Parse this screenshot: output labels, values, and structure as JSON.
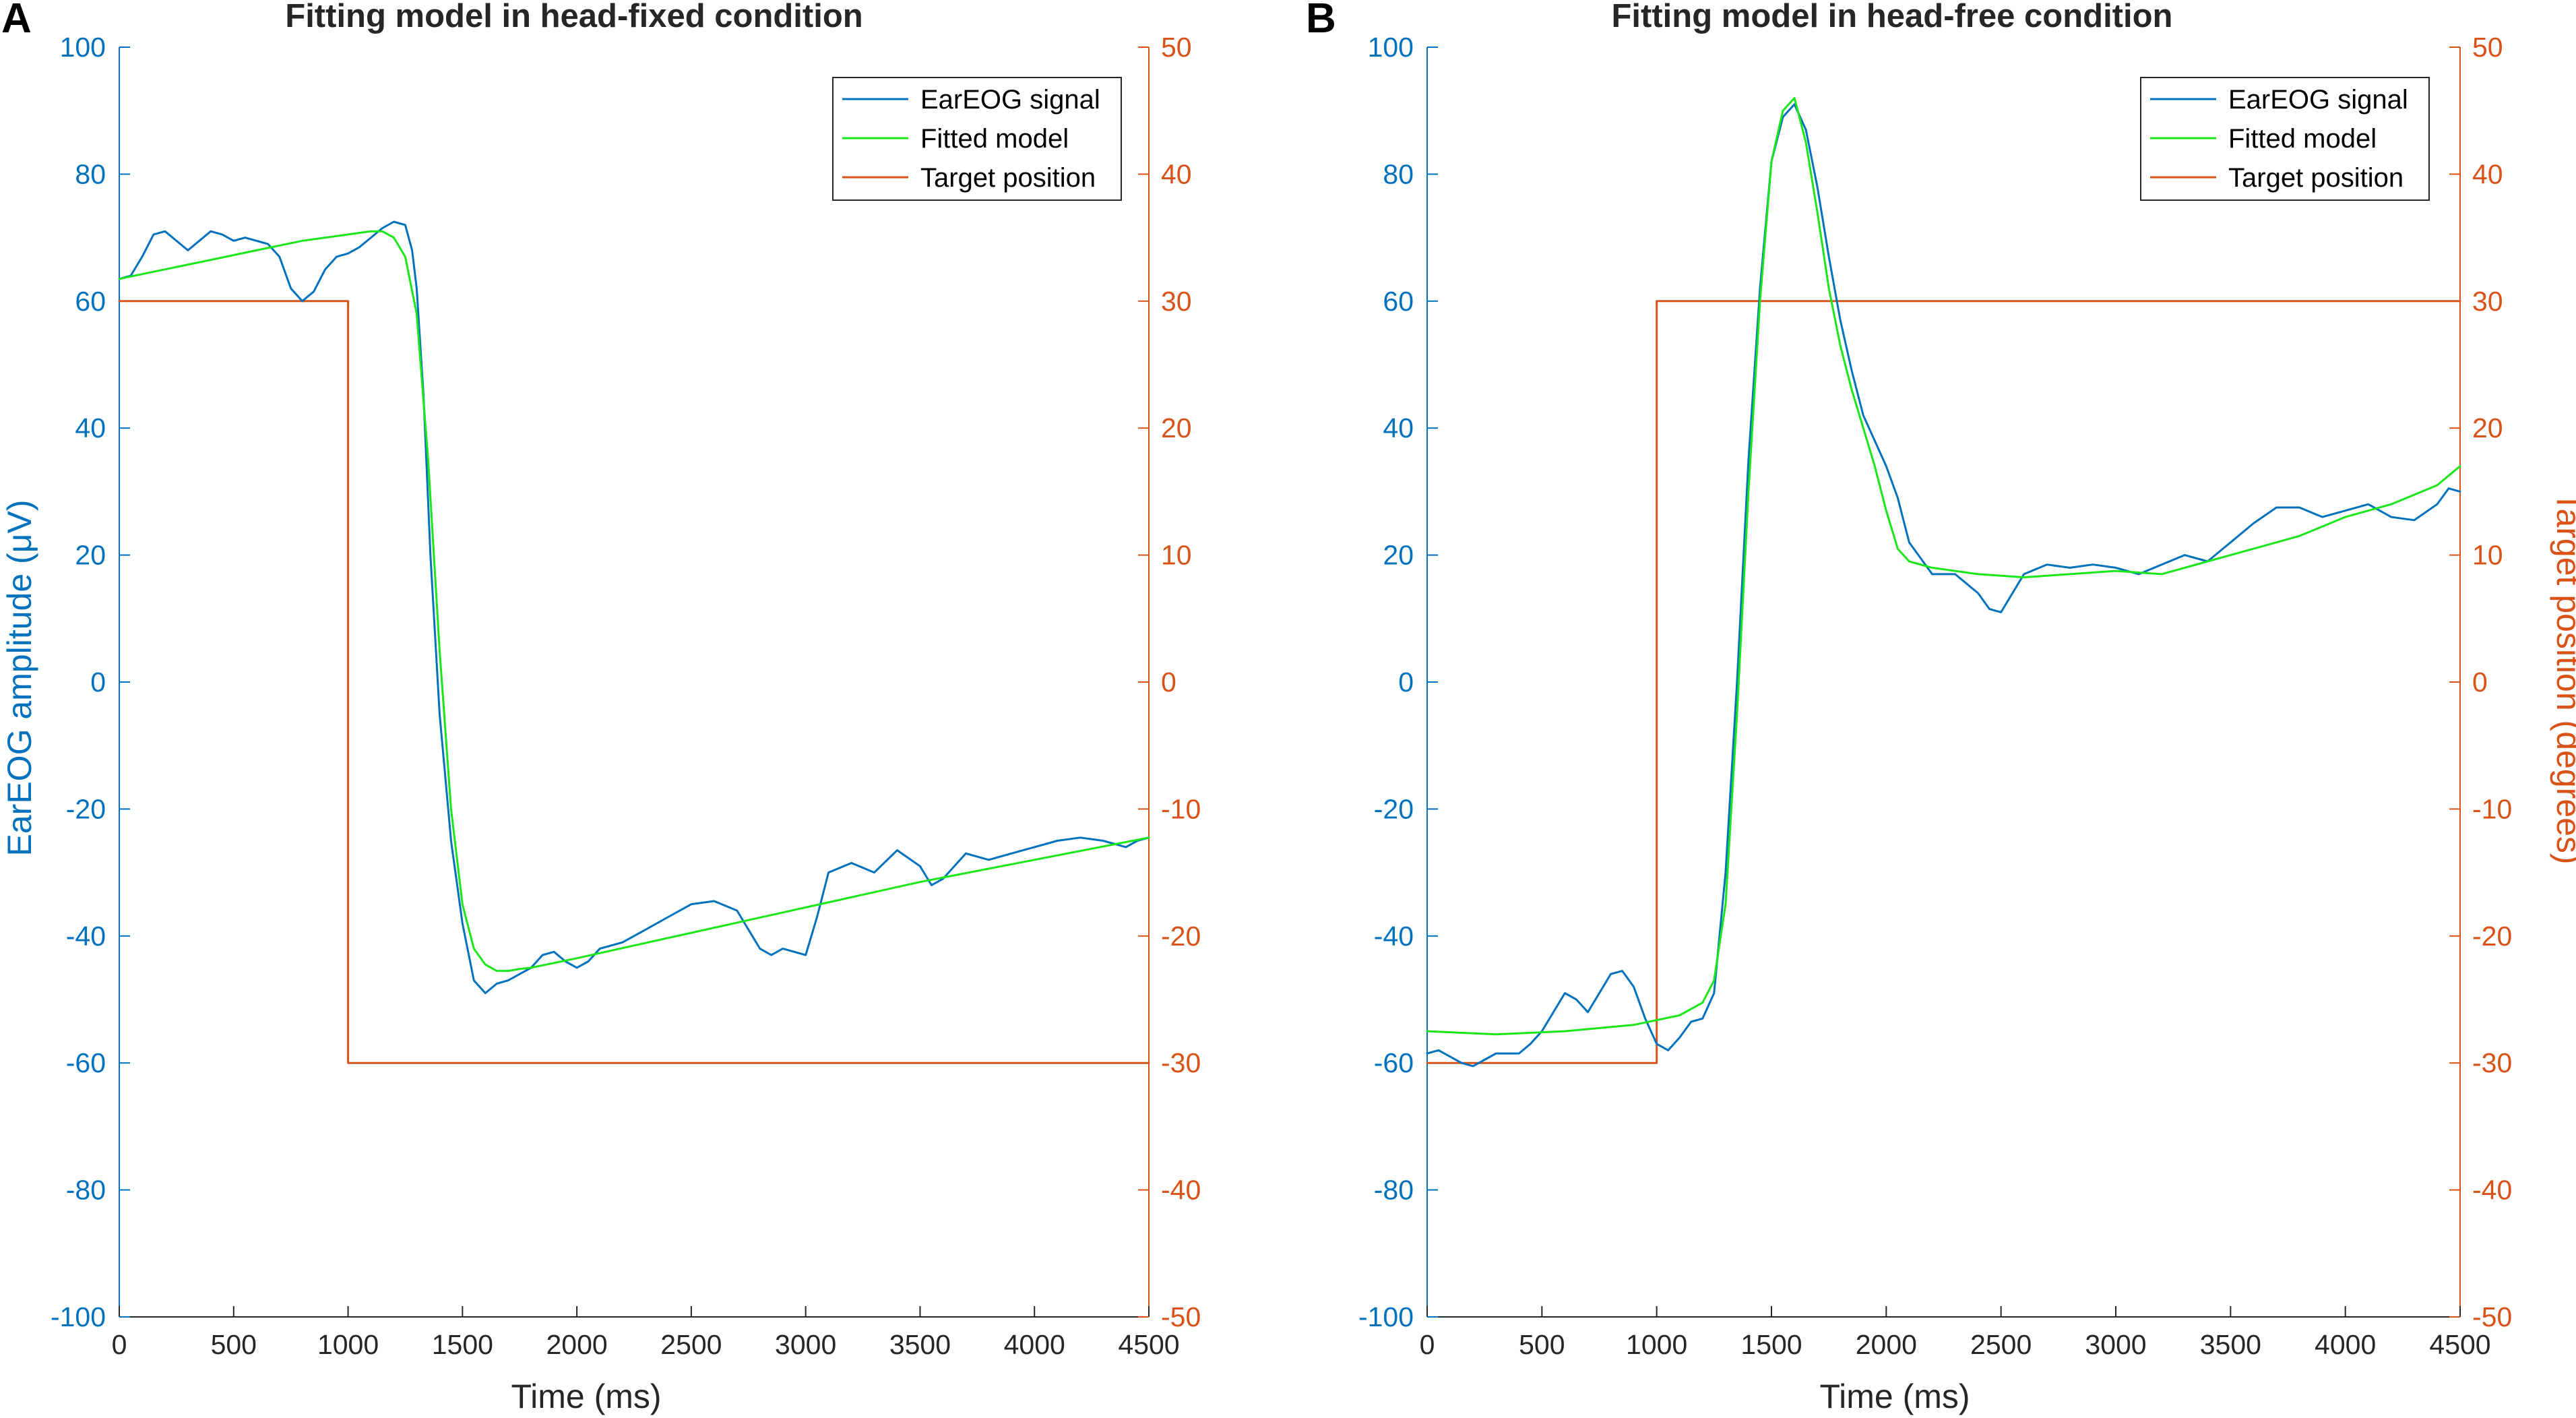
{
  "colors": {
    "left_axis": "#0072BD",
    "right_axis": "#D95319",
    "eareog": "#0072BD",
    "fitted": "#1AE61A",
    "target": "#D95319",
    "x_axis": "#262626"
  },
  "chart_data": [
    {
      "type": "line",
      "panel_label": "A",
      "title": "Fitting model in head-fixed condition",
      "xlabel": "Time (ms)",
      "ylabel_left": "EarEOG amplitude (μV)",
      "ylabel_right": "",
      "xlim": [
        0,
        4500
      ],
      "ylim_left": [
        -100,
        100
      ],
      "ylim_right": [
        -50,
        50
      ],
      "x_ticks": [
        "0",
        "500",
        "1000",
        "1500",
        "2000",
        "2500",
        "3000",
        "3500",
        "4000",
        "4500"
      ],
      "y_left_ticks": [
        "100",
        "80",
        "60",
        "40",
        "20",
        "0",
        "-20",
        "-40",
        "-60",
        "-80",
        "-100"
      ],
      "y_right_ticks": [
        "50",
        "40",
        "30",
        "20",
        "10",
        "0",
        "-10",
        "-20",
        "-30",
        "-40",
        "-50"
      ],
      "legend": [
        "EarEOG signal",
        "Fitted model",
        "Target position"
      ],
      "legend_position": "top-right",
      "series": [
        {
          "name": "EarEOG signal",
          "axis": "left",
          "x": [
            0,
            50,
            100,
            150,
            200,
            250,
            300,
            350,
            400,
            450,
            500,
            550,
            600,
            650,
            700,
            750,
            800,
            850,
            900,
            950,
            1000,
            1050,
            1100,
            1150,
            1200,
            1250,
            1280,
            1300,
            1330,
            1360,
            1400,
            1450,
            1500,
            1550,
            1600,
            1650,
            1700,
            1750,
            1800,
            1850,
            1900,
            1950,
            2000,
            2050,
            2100,
            2150,
            2200,
            2300,
            2400,
            2500,
            2600,
            2700,
            2800,
            2850,
            2900,
            3000,
            3050,
            3100,
            3200,
            3300,
            3400,
            3500,
            3550,
            3600,
            3700,
            3800,
            3900,
            4000,
            4100,
            4200,
            4300,
            4400,
            4450,
            4500
          ],
          "y": [
            63.5,
            64,
            67,
            70.5,
            71,
            69.5,
            68,
            69.5,
            71,
            70.5,
            69.5,
            70,
            69.5,
            69,
            67,
            62,
            60,
            61.5,
            65,
            67,
            67.5,
            68.5,
            70,
            71.5,
            72.5,
            72,
            68,
            62,
            45,
            20,
            -5,
            -25,
            -38,
            -47,
            -49,
            -47.5,
            -47,
            -46,
            -45,
            -43,
            -42.5,
            -44,
            -45,
            -44,
            -42,
            -41.5,
            -41,
            -39,
            -37,
            -35,
            -34.5,
            -36,
            -42,
            -43,
            -42,
            -43,
            -37,
            -30,
            -28.5,
            -30,
            -26.5,
            -29,
            -32,
            -31,
            -27,
            -28,
            -27,
            -26,
            -25,
            -24.5,
            -25,
            -26,
            -25,
            -24.5
          ]
        },
        {
          "name": "Fitted model",
          "axis": "left",
          "x": [
            0,
            200,
            400,
            600,
            800,
            1000,
            1100,
            1150,
            1200,
            1250,
            1300,
            1350,
            1400,
            1450,
            1500,
            1550,
            1600,
            1650,
            1700,
            1750,
            1800,
            2000,
            2500,
            3000,
            3500,
            4000,
            4500
          ],
          "y": [
            63.5,
            65,
            66.5,
            68,
            69.5,
            70.5,
            71,
            71,
            70,
            67,
            58,
            35,
            5,
            -20,
            -35,
            -42,
            -44.5,
            -45.5,
            -45.5,
            -45.2,
            -45,
            -43.5,
            -39.5,
            -35.5,
            -31.5,
            -28,
            -24.5
          ]
        },
        {
          "name": "Target position",
          "axis": "right",
          "step": true,
          "x": [
            0,
            1000,
            1000,
            4500
          ],
          "y": [
            30,
            30,
            -30,
            -30
          ]
        }
      ]
    },
    {
      "type": "line",
      "panel_label": "B",
      "title": "Fitting model in head-free condition",
      "xlabel": "Time (ms)",
      "ylabel_left": "",
      "ylabel_right": "Target position (degrees)",
      "xlim": [
        0,
        4500
      ],
      "ylim_left": [
        -100,
        100
      ],
      "ylim_right": [
        -50,
        50
      ],
      "x_ticks": [
        "0",
        "500",
        "1000",
        "1500",
        "2000",
        "2500",
        "3000",
        "3500",
        "4000",
        "4500"
      ],
      "y_left_ticks": [
        "100",
        "80",
        "60",
        "40",
        "20",
        "0",
        "-20",
        "-40",
        "-60",
        "-80",
        "-100"
      ],
      "y_right_ticks": [
        "50",
        "40",
        "30",
        "20",
        "10",
        "0",
        "-10",
        "-20",
        "-30",
        "-40",
        "-50"
      ],
      "legend": [
        "EarEOG signal",
        "Fitted model",
        "Target position"
      ],
      "legend_position": "top-right",
      "series": [
        {
          "name": "EarEOG signal",
          "axis": "left",
          "x": [
            0,
            50,
            100,
            150,
            200,
            250,
            300,
            350,
            400,
            450,
            500,
            550,
            600,
            650,
            700,
            750,
            800,
            850,
            900,
            950,
            1000,
            1050,
            1100,
            1150,
            1200,
            1250,
            1300,
            1350,
            1400,
            1450,
            1500,
            1550,
            1600,
            1650,
            1700,
            1750,
            1800,
            1850,
            1900,
            1950,
            2000,
            2050,
            2100,
            2200,
            2300,
            2400,
            2450,
            2500,
            2550,
            2600,
            2700,
            2800,
            2900,
            3000,
            3100,
            3200,
            3300,
            3400,
            3500,
            3600,
            3700,
            3800,
            3900,
            4000,
            4100,
            4200,
            4300,
            4400,
            4450,
            4500
          ],
          "y": [
            -58.5,
            -58,
            -59,
            -60,
            -60.5,
            -59.5,
            -58.5,
            -58.5,
            -58.5,
            -57,
            -55,
            -52,
            -49,
            -50,
            -52,
            -49,
            -46,
            -45.5,
            -48,
            -53,
            -57,
            -58,
            -56,
            -53.5,
            -53,
            -49,
            -30,
            0,
            35,
            62,
            82,
            89,
            91,
            87,
            78,
            67,
            57,
            49,
            42,
            38,
            34,
            29,
            22,
            17,
            17,
            14,
            11.5,
            11,
            14,
            17,
            18.5,
            18,
            18.5,
            18,
            17,
            18.5,
            20,
            19,
            22,
            25,
            27.5,
            27.5,
            26,
            27,
            28,
            26,
            25.5,
            28,
            30.5,
            30
          ]
        },
        {
          "name": "Fitted model",
          "axis": "left",
          "x": [
            0,
            300,
            600,
            900,
            1100,
            1200,
            1250,
            1300,
            1350,
            1400,
            1450,
            1500,
            1550,
            1600,
            1650,
            1700,
            1750,
            1800,
            1850,
            1900,
            1950,
            2000,
            2050,
            2100,
            2200,
            2400,
            2600,
            2800,
            3000,
            3200,
            3400,
            3600,
            3800,
            4000,
            4200,
            4400,
            4500
          ],
          "y": [
            -55,
            -55.5,
            -55,
            -54,
            -52.5,
            -50.5,
            -47,
            -35,
            -5,
            30,
            60,
            82,
            90,
            92,
            85,
            74,
            62,
            53,
            46,
            40,
            34,
            27,
            21,
            19,
            18,
            17,
            16.5,
            17,
            17.5,
            17,
            19,
            21,
            23,
            26,
            28,
            31,
            34
          ]
        },
        {
          "name": "Target position",
          "axis": "right",
          "step": true,
          "x": [
            0,
            1000,
            1000,
            4500
          ],
          "y": [
            -30,
            -30,
            30,
            30
          ]
        }
      ]
    }
  ]
}
